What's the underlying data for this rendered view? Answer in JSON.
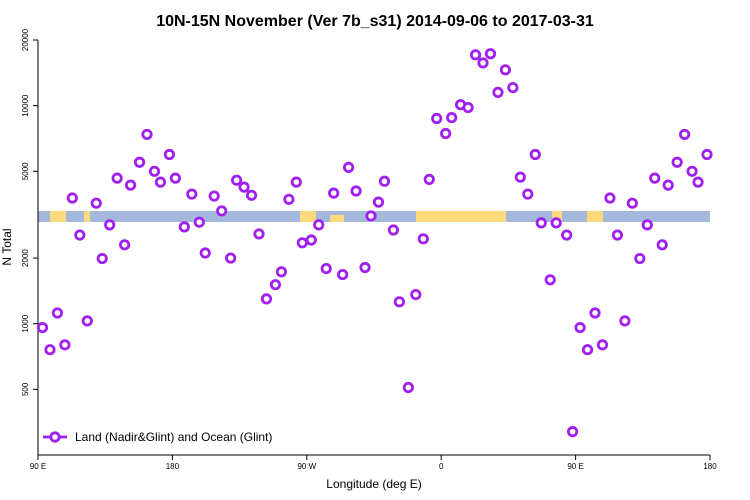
{
  "chart_data": {
    "type": "scatter",
    "title": "10N-15N November (Ver 7b_s31)   2014-09-06 to 2017-03-31",
    "x_label": "Longitude (deg E)",
    "y_label": "N Total",
    "log_y": true,
    "legend": "bottom-left",
    "xlim": [
      90,
      540
    ],
    "xticks": [
      {
        "value": 90,
        "label": "90 E"
      },
      {
        "value": 180,
        "label": "180"
      },
      {
        "value": 270,
        "label": "90 W"
      },
      {
        "value": 360,
        "label": "0"
      },
      {
        "value": 450,
        "label": "90 E"
      },
      {
        "value": 540,
        "label": "180"
      }
    ],
    "ylim": [
      250,
      20000
    ],
    "yticks": [
      500,
      1000,
      2000,
      5000,
      10000,
      20000
    ],
    "series": [
      {
        "name": "Land (Nadir&Glint) and Ocean (Glint)",
        "color": "#a020f0",
        "x": [
          93,
          98,
          103,
          108,
          113,
          118,
          123,
          129,
          133,
          138,
          143,
          148,
          152,
          158,
          163,
          168,
          172,
          178,
          182,
          188,
          193,
          198,
          202,
          208,
          213,
          219,
          223,
          228,
          233,
          238,
          243,
          249,
          253,
          258,
          263,
          267,
          273,
          278,
          283,
          288,
          294,
          298,
          303,
          309,
          313,
          318,
          322,
          328,
          332,
          338,
          343,
          348,
          352,
          357,
          363,
          367,
          373,
          378,
          383,
          388,
          393,
          398,
          403,
          408,
          413,
          418,
          423,
          427,
          433,
          437,
          444,
          448,
          453,
          458,
          463,
          468,
          473,
          478,
          483,
          488,
          493,
          498,
          503,
          508,
          512,
          518,
          523,
          528,
          532,
          538
        ],
        "values": [
          960,
          760,
          1120,
          800,
          3770,
          2550,
          1030,
          3570,
          1990,
          2840,
          4650,
          2300,
          4320,
          5500,
          7380,
          5000,
          4460,
          5970,
          4650,
          2780,
          3930,
          2920,
          2110,
          3850,
          3290,
          2000,
          4550,
          4230,
          3880,
          2580,
          1300,
          1510,
          1730,
          3720,
          4460,
          2350,
          2420,
          2840,
          1790,
          3970,
          1680,
          5210,
          4060,
          1810,
          3120,
          3610,
          4500,
          2690,
          1260,
          510,
          1360,
          2450,
          4590,
          8730,
          7450,
          8810,
          10100,
          9800,
          17100,
          15700,
          17300,
          11500,
          14600,
          12100,
          4700,
          3930,
          5970,
          2900,
          1590,
          2900,
          2550,
          320,
          960,
          760,
          1120,
          800,
          3770,
          2550,
          1030,
          3570,
          1990,
          2840,
          4650,
          2300,
          4320,
          5500,
          7380,
          5000,
          4460,
          5970
        ]
      }
    ]
  }
}
